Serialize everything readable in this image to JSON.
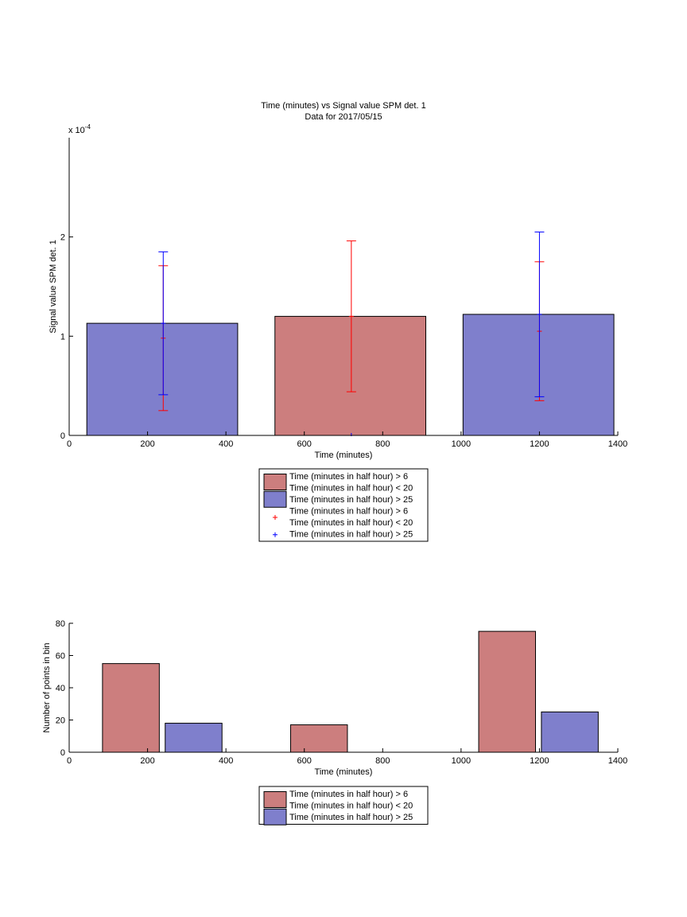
{
  "colors": {
    "group_a_fill": "#cc7e7e",
    "group_b_fill": "#7f7fcc",
    "group_a_errorbar": "#ff0000",
    "group_b_errorbar": "#0000ff",
    "axis": "#000000"
  },
  "chart_data": [
    {
      "type": "bar",
      "title": "Time (minutes) vs Signal value SPM det. 1",
      "subtitle": "Data for 2017/05/15",
      "xlabel": "Time (minutes)",
      "ylabel": "Signal value SPM det. 1",
      "y_exponent_label": "x 10",
      "y_exponent_power": "-4",
      "xlim": [
        0,
        1400
      ],
      "ylim": [
        0,
        3
      ],
      "y_unit_scale": 0.0001,
      "xticks": [
        "0",
        "200",
        "400",
        "600",
        "800",
        "1000",
        "1200",
        "1400"
      ],
      "yticks": [
        "0",
        "1",
        "2"
      ],
      "bars": [
        {
          "series": "group_b",
          "x_start": 45,
          "x_end": 430,
          "value": 1.13
        },
        {
          "series": "group_a",
          "x_start": 525,
          "x_end": 910,
          "value": 1.2
        },
        {
          "series": "group_b",
          "x_start": 1005,
          "x_end": 1390,
          "value": 1.22
        }
      ],
      "errorbars": [
        {
          "series": "group_a",
          "x": 240,
          "center": 0.98,
          "low": 0.25,
          "high": 1.71
        },
        {
          "series": "group_b",
          "x": 240,
          "center": 1.13,
          "low": 0.41,
          "high": 1.85
        },
        {
          "series": "group_a",
          "x": 720,
          "center": 1.2,
          "low": 0.44,
          "high": 1.96
        },
        {
          "series": "group_b",
          "x": 720,
          "center": 0.0,
          "low": 0.0,
          "high": 0.0
        },
        {
          "series": "group_a",
          "x": 1200,
          "center": 1.05,
          "low": 0.35,
          "high": 1.75
        },
        {
          "series": "group_b",
          "x": 1200,
          "center": 1.22,
          "low": 0.39,
          "high": 2.05
        }
      ],
      "legend": {
        "placement": "below",
        "entries": [
          {
            "kind": "patch",
            "series": "group_a",
            "lines": [
              "Time (minutes in half hour) > 6",
              "Time (minutes in half hour) < 20"
            ]
          },
          {
            "kind": "patch",
            "series": "group_b",
            "lines": [
              "Time (minutes in half hour) > 25"
            ]
          },
          {
            "kind": "marker",
            "series": "group_a",
            "lines": [
              "Time (minutes in half hour) > 6",
              "Time (minutes in half hour) < 20"
            ]
          },
          {
            "kind": "marker",
            "series": "group_b",
            "lines": [
              "Time (minutes in half hour) > 25"
            ]
          }
        ]
      }
    },
    {
      "type": "bar",
      "title": "",
      "xlabel": "Time (minutes)",
      "ylabel": "Number of points in bin",
      "xlim": [
        0,
        1400
      ],
      "ylim": [
        0,
        80
      ],
      "xticks": [
        "0",
        "200",
        "400",
        "600",
        "800",
        "1000",
        "1200",
        "1400"
      ],
      "yticks": [
        "0",
        "20",
        "40",
        "60",
        "80"
      ],
      "bars": [
        {
          "series": "group_a",
          "x_start": 85,
          "x_end": 230,
          "value": 55
        },
        {
          "series": "group_b",
          "x_start": 245,
          "x_end": 390,
          "value": 18
        },
        {
          "series": "group_a",
          "x_start": 565,
          "x_end": 710,
          "value": 17
        },
        {
          "series": "group_a",
          "x_start": 1045,
          "x_end": 1190,
          "value": 75
        },
        {
          "series": "group_b",
          "x_start": 1205,
          "x_end": 1350,
          "value": 25
        }
      ],
      "legend": {
        "placement": "below",
        "entries": [
          {
            "kind": "patch",
            "series": "group_a",
            "lines": [
              "Time (minutes in half hour) > 6",
              "Time (minutes in half hour) < 20"
            ]
          },
          {
            "kind": "patch",
            "series": "group_b",
            "lines": [
              "Time (minutes in half hour) > 25"
            ]
          }
        ]
      }
    }
  ]
}
